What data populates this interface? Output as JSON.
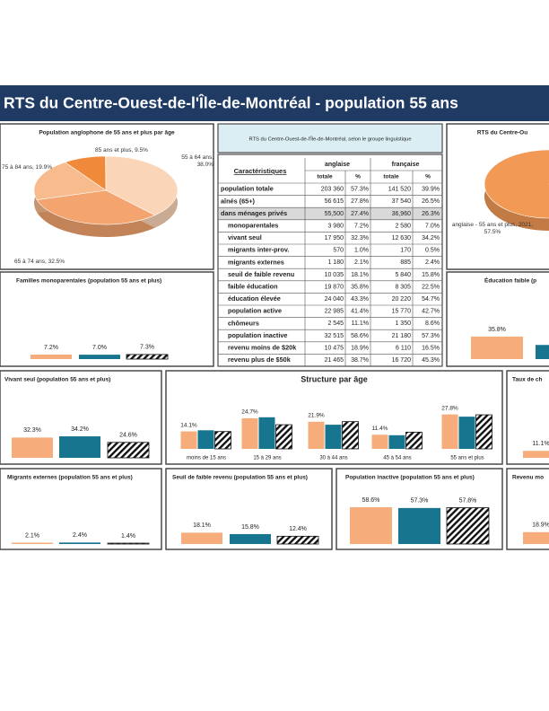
{
  "header": {
    "title": "RTS du Centre-Ouest-de-l'Île-de-Montréal - population 55 ans"
  },
  "table": {
    "title": "RTS du Centre-Ouest-de-l'Île-de-Montréal, selon le groupe linguistique",
    "header": [
      "Caractéristiques",
      "anglaise",
      "française"
    ],
    "subheader": [
      "totale",
      "%",
      "totale",
      "%"
    ],
    "rows": [
      [
        "population totale",
        "203 360",
        "57.3%",
        "141 520",
        "39.9%"
      ],
      [
        "aînés (65+)",
        "56 615",
        "27.8%",
        "37 540",
        "26.5%"
      ],
      [
        "dans ménages privés",
        "55,500",
        "27.4%",
        "36,960",
        "26.3%"
      ],
      [
        "monoparentales",
        "3 980",
        "7.2%",
        "2 580",
        "7.0%"
      ],
      [
        "vivant seul",
        "17 950",
        "32.3%",
        "12 630",
        "34.2%"
      ],
      [
        "migrants inter-prov.",
        "570",
        "1.0%",
        "170",
        "0.5%"
      ],
      [
        "migrants externes",
        "1 180",
        "2.1%",
        "885",
        "2.4%"
      ],
      [
        "seuil de faible revenu",
        "10 035",
        "18.1%",
        "5 840",
        "15.8%"
      ],
      [
        "faible éducation",
        "19 870",
        "35.8%",
        "8 305",
        "22.5%"
      ],
      [
        "éducation élevée",
        "24 040",
        "43.3%",
        "20 220",
        "54.7%"
      ],
      [
        "population active",
        "22 985",
        "41.4%",
        "15 770",
        "42.7%"
      ],
      [
        "chômeurs",
        "2 545",
        "11.1%",
        "1 350",
        "8.6%"
      ],
      [
        "population inactive",
        "32 515",
        "58.6%",
        "21 180",
        "57.3%"
      ],
      [
        "revenu moins de $20k",
        "10 475",
        "18.9%",
        "6 110",
        "16.5%"
      ],
      [
        "revenu plus de $50k",
        "21 465",
        "38.7%",
        "16 720",
        "45.3%"
      ]
    ]
  },
  "chart_data": [
    {
      "type": "pie",
      "title": "Population anglophone de 55 ans et plus par âge",
      "values": [
        38.0,
        32.5,
        19.9,
        9.5
      ],
      "value_labels": [
        "55 à 64 ans, 38.0%",
        "65 à 74 ans, 32.5%",
        "75 à 84 ans, 19.9%",
        "85 ans et plus, 9.5%"
      ],
      "colors": [
        "#fbd5b8",
        "#f4a46e",
        "#f8bb8e",
        "#f08a3a"
      ]
    },
    {
      "type": "pie",
      "title": "RTS du Centre-Ou",
      "values": [
        57.5
      ],
      "value_labels": [
        "anglaise - 55 ans et plus, 2021, 57.5%"
      ],
      "colors": [
        "#f29a55"
      ]
    },
    {
      "type": "bar",
      "title": "Familles monoparentales (population 55 ans et plus)",
      "values": [
        7.2,
        7.0,
        7.3
      ],
      "value_labels": [
        "7.2%",
        "7.0%",
        "7.3%"
      ],
      "colors": [
        "#f6ad7b",
        "#17758f",
        "hatch"
      ]
    },
    {
      "type": "bar",
      "title": "Éducation faible (p",
      "values": [
        35.8,
        22.5
      ],
      "value_labels": [
        "35.8%",
        null
      ],
      "colors": [
        "#f6ad7b",
        "#17758f"
      ]
    },
    {
      "type": "bar",
      "title": "Vivant seul (population 55 ans et plus)",
      "values": [
        32.3,
        34.2,
        24.6
      ],
      "value_labels": [
        "32.3%",
        "34.2%",
        "24.6%"
      ],
      "colors": [
        "#f6ad7b",
        "#17758f",
        "hatch"
      ]
    },
    {
      "type": "grouped_bar",
      "title": "Structure par âge",
      "categories": [
        "moins de 15 ans",
        "15 à 29 ans",
        "30 à 44 ans",
        "45 à 54 ans",
        "55 ans et plus"
      ],
      "series": [
        {
          "color": "#f6ad7b",
          "values": [
            14.1,
            24.7,
            21.9,
            11.4,
            27.8
          ],
          "value_labels": [
            "14.1%",
            "24.7%",
            "21.9%",
            "11.4%",
            "27.8%"
          ]
        },
        {
          "color": "#17758f",
          "values": [
            15.0,
            25.5,
            19.5,
            11.0,
            26.0
          ]
        },
        {
          "color": "hatch",
          "values": [
            14.0,
            19.5,
            22.0,
            13.5,
            27.5
          ]
        }
      ]
    },
    {
      "type": "bar",
      "title": "Taux de ch",
      "values": [
        11.1
      ],
      "value_labels": [
        "11.1%"
      ],
      "colors": [
        "#f6ad7b"
      ]
    },
    {
      "type": "bar",
      "title": "Migrants externes (population 55 ans et plus)",
      "values": [
        2.1,
        2.4,
        1.4
      ],
      "value_labels": [
        "2.1%",
        "2.4%",
        "1.4%"
      ],
      "colors": [
        "#f6ad7b",
        "#17758f",
        "hatch"
      ]
    },
    {
      "type": "bar",
      "title": "Seuil de faible revenu (population 55 ans et plus)",
      "values": [
        18.1,
        15.8,
        12.4
      ],
      "value_labels": [
        "18.1%",
        "15.8%",
        "12.4%"
      ],
      "colors": [
        "#f6ad7b",
        "#17758f",
        "hatch"
      ]
    },
    {
      "type": "bar",
      "title": "Population inactive (population 55 ans et plus)",
      "values": [
        58.6,
        57.3,
        57.8
      ],
      "value_labels": [
        "58.6%",
        "57.3%",
        "57.8%"
      ],
      "colors": [
        "#f6ad7b",
        "#17758f",
        "hatch"
      ]
    },
    {
      "type": "bar",
      "title": "Revenu mo",
      "values": [
        18.9
      ],
      "value_labels": [
        "18.9%"
      ],
      "colors": [
        "#f6ad7b"
      ]
    }
  ]
}
